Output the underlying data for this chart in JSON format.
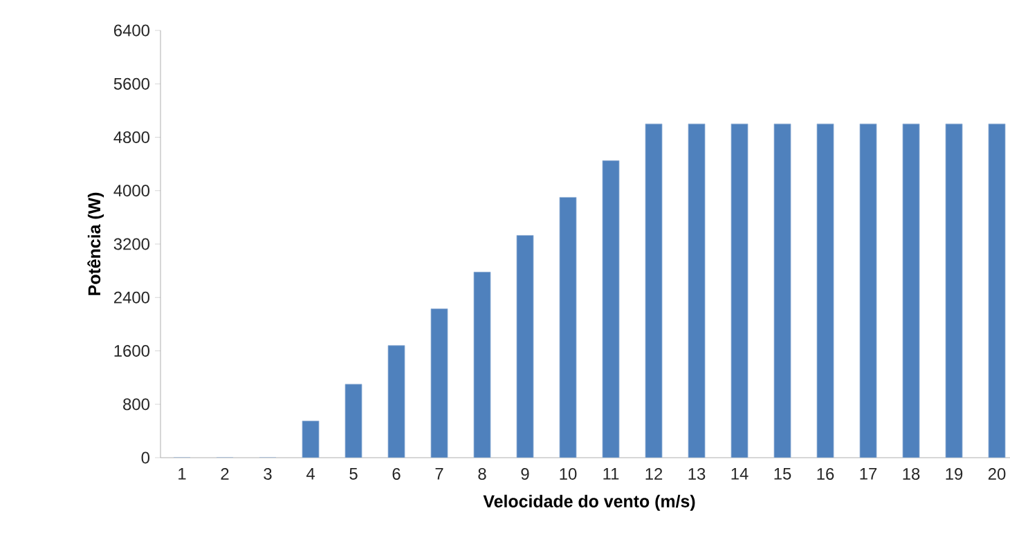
{
  "chart_data": {
    "type": "bar",
    "xlabel": "Velocidade do vento (m/s)",
    "ylabel": "Potência (W)",
    "categories": [
      "1",
      "2",
      "3",
      "4",
      "5",
      "6",
      "7",
      "8",
      "9",
      "10",
      "11",
      "12",
      "13",
      "14",
      "15",
      "16",
      "17",
      "18",
      "19",
      "20"
    ],
    "values": [
      0,
      0,
      0,
      550,
      1100,
      1680,
      2230,
      2780,
      3330,
      3900,
      4450,
      5000,
      5000,
      5000,
      5000,
      5000,
      5000,
      5000,
      5000,
      5000
    ],
    "color": "#4f81bd",
    "ylim": [
      0,
      6400
    ],
    "yticks": [
      0,
      800,
      1600,
      2400,
      3200,
      4000,
      4800,
      5600,
      6400
    ],
    "grid": false
  }
}
